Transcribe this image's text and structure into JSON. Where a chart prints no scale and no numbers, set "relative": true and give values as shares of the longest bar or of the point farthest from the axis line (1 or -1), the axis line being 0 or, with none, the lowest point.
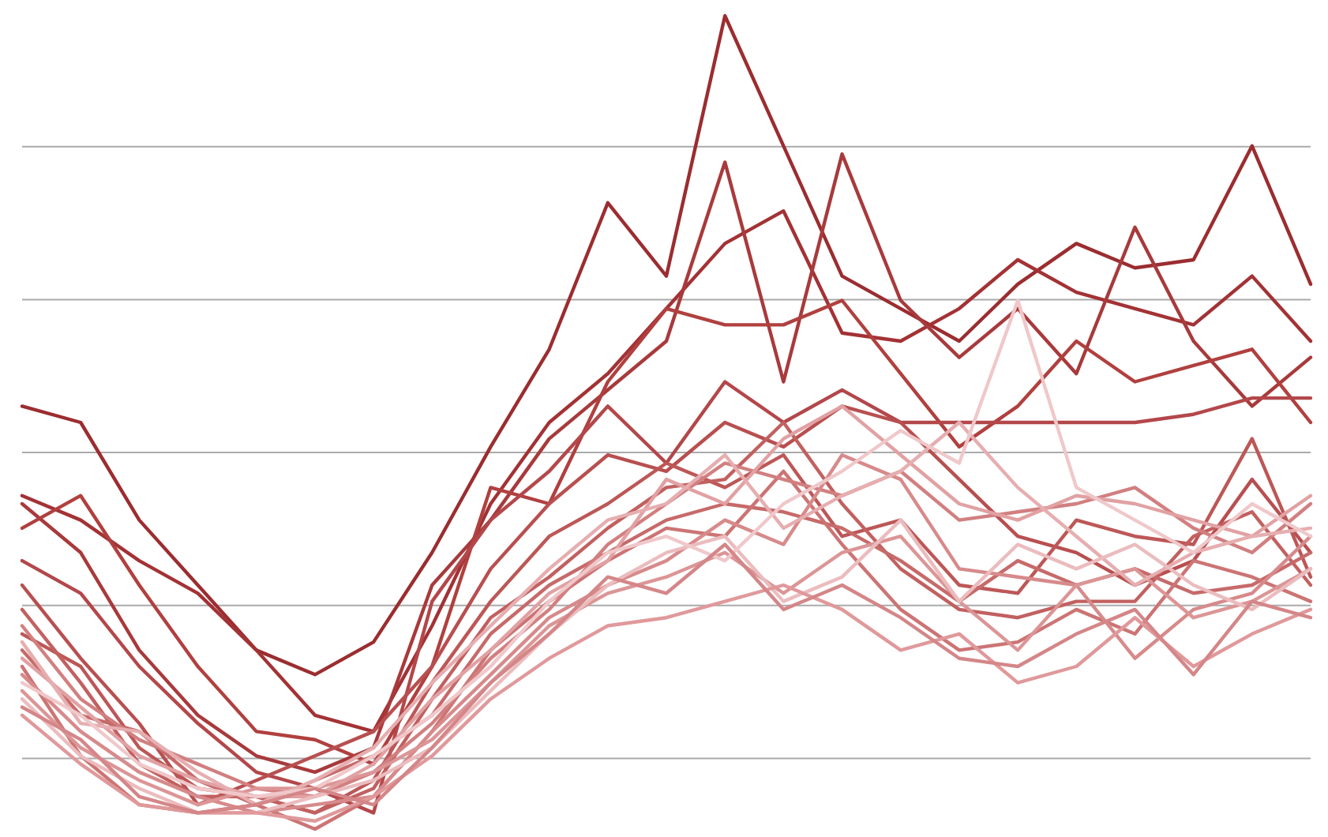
{
  "chart_data": {
    "type": "line",
    "relative": true,
    "grid": true,
    "line_style": "solid",
    "categories": [
      null,
      null,
      null,
      null,
      null,
      null,
      null,
      null,
      null,
      null,
      null,
      null,
      null,
      null,
      null,
      null,
      null,
      null,
      null,
      null,
      null,
      null,
      null
    ],
    "series": [
      {
        "color": "#9b2d30",
        "values": [
          0.52,
          0.5,
          0.38,
          0.3,
          0.22,
          0.19,
          0.23,
          0.34,
          0.47,
          0.59,
          0.77,
          0.68,
          1.0,
          0.84,
          0.68,
          0.64,
          0.6,
          0.67,
          0.72,
          0.69,
          0.7,
          0.84,
          0.67
        ]
      },
      {
        "color": "#a33235",
        "values": [
          0.41,
          0.38,
          0.33,
          0.29,
          0.22,
          0.14,
          0.12,
          0.25,
          0.4,
          0.5,
          0.56,
          0.64,
          0.72,
          0.76,
          0.61,
          0.6,
          0.64,
          0.7,
          0.66,
          0.64,
          0.62,
          0.68,
          0.6
        ]
      },
      {
        "color": "#a83a3c",
        "values": [
          0.4,
          0.34,
          0.22,
          0.14,
          0.09,
          0.07,
          0.1,
          0.3,
          0.38,
          0.48,
          0.54,
          0.6,
          0.82,
          0.55,
          0.83,
          0.65,
          0.58,
          0.64,
          0.56,
          0.74,
          0.6,
          0.52,
          0.58
        ]
      },
      {
        "color": "#b0403f",
        "values": [
          0.37,
          0.41,
          0.3,
          0.2,
          0.12,
          0.11,
          0.08,
          0.2,
          0.42,
          0.4,
          0.55,
          0.64,
          0.62,
          0.62,
          0.65,
          0.56,
          0.47,
          0.52,
          0.6,
          0.55,
          0.57,
          0.59,
          0.5
        ]
      },
      {
        "color": "#b3474a",
        "values": [
          0.33,
          0.29,
          0.2,
          0.13,
          0.07,
          0.05,
          0.02,
          0.28,
          0.38,
          0.44,
          0.52,
          0.45,
          0.55,
          0.5,
          0.54,
          0.5,
          0.5,
          0.5,
          0.5,
          0.5,
          0.51,
          0.53,
          0.53
        ]
      },
      {
        "color": "#b84f50",
        "values": [
          0.3,
          0.21,
          0.13,
          0.03,
          0.06,
          0.09,
          0.12,
          0.2,
          0.32,
          0.4,
          0.46,
          0.44,
          0.5,
          0.47,
          0.52,
          0.5,
          0.43,
          0.36,
          0.34,
          0.3,
          0.33,
          0.43,
          0.34
        ]
      },
      {
        "color": "#bd5757",
        "values": [
          0.24,
          0.2,
          0.1,
          0.05,
          0.04,
          0.02,
          0.06,
          0.18,
          0.28,
          0.36,
          0.4,
          0.45,
          0.42,
          0.46,
          0.36,
          0.38,
          0.3,
          0.29,
          0.38,
          0.36,
          0.35,
          0.48,
          0.31
        ]
      },
      {
        "color": "#c26060",
        "values": [
          0.27,
          0.18,
          0.08,
          0.04,
          0.04,
          0.02,
          0.05,
          0.16,
          0.26,
          0.31,
          0.37,
          0.42,
          0.43,
          0.5,
          0.4,
          0.32,
          0.27,
          0.26,
          0.28,
          0.28,
          0.36,
          0.39,
          0.3
        ]
      },
      {
        "color": "#c76a6a",
        "values": [
          0.22,
          0.14,
          0.12,
          0.06,
          0.03,
          0.06,
          0.09,
          0.14,
          0.24,
          0.3,
          0.34,
          0.38,
          0.4,
          0.39,
          0.37,
          0.33,
          0.28,
          0.33,
          0.3,
          0.32,
          0.29,
          0.3,
          0.34
        ]
      },
      {
        "color": "#cc7474",
        "values": [
          0.2,
          0.09,
          0.03,
          0.02,
          0.03,
          0.0,
          0.04,
          0.12,
          0.22,
          0.28,
          0.33,
          0.37,
          0.36,
          0.44,
          0.35,
          0.27,
          0.22,
          0.23,
          0.27,
          0.24,
          0.33,
          0.31,
          0.28
        ]
      },
      {
        "color": "#d27f80",
        "values": [
          0.25,
          0.16,
          0.11,
          0.08,
          0.05,
          0.04,
          0.07,
          0.13,
          0.21,
          0.27,
          0.35,
          0.4,
          0.45,
          0.43,
          0.41,
          0.44,
          0.38,
          0.39,
          0.4,
          0.42,
          0.37,
          0.34,
          0.4
        ]
      },
      {
        "color": "#d78a8b",
        "values": [
          0.19,
          0.12,
          0.07,
          0.04,
          0.02,
          0.03,
          0.04,
          0.12,
          0.19,
          0.26,
          0.3,
          0.33,
          0.38,
          0.35,
          0.46,
          0.43,
          0.32,
          0.31,
          0.3,
          0.21,
          0.27,
          0.29,
          0.36
        ]
      },
      {
        "color": "#dc9596",
        "values": [
          0.17,
          0.1,
          0.06,
          0.03,
          0.05,
          0.05,
          0.07,
          0.11,
          0.18,
          0.25,
          0.29,
          0.31,
          0.34,
          0.29,
          0.34,
          0.36,
          0.28,
          0.22,
          0.3,
          0.32,
          0.26,
          0.28,
          0.32
        ]
      },
      {
        "color": "#e1a1a3",
        "values": [
          0.21,
          0.15,
          0.09,
          0.06,
          0.04,
          0.04,
          0.08,
          0.16,
          0.22,
          0.29,
          0.33,
          0.43,
          0.4,
          0.48,
          0.52,
          0.46,
          0.4,
          0.38,
          0.41,
          0.4,
          0.38,
          0.36,
          0.41
        ]
      },
      {
        "color": "#e6aeb0",
        "values": [
          0.23,
          0.13,
          0.12,
          0.07,
          0.03,
          0.06,
          0.1,
          0.18,
          0.25,
          0.32,
          0.38,
          0.4,
          0.46,
          0.37,
          0.41,
          0.44,
          0.5,
          0.42,
          0.36,
          0.3,
          0.34,
          0.36,
          0.37
        ]
      },
      {
        "color": "#ebbcbe",
        "values": [
          0.16,
          0.09,
          0.05,
          0.02,
          0.02,
          0.04,
          0.06,
          0.1,
          0.17,
          0.24,
          0.3,
          0.34,
          0.36,
          0.28,
          0.31,
          0.38,
          0.28,
          0.35,
          0.32,
          0.35,
          0.3,
          0.27,
          0.32
        ]
      },
      {
        "color": "#f0c8ca",
        "values": [
          0.18,
          0.14,
          0.08,
          0.05,
          0.04,
          0.05,
          0.09,
          0.14,
          0.2,
          0.28,
          0.34,
          0.36,
          0.33,
          0.4,
          0.44,
          0.49,
          0.45,
          0.65,
          0.42,
          0.38,
          0.34,
          0.4,
          0.36
        ]
      },
      {
        "color": "#e0999b",
        "values": [
          0.14,
          0.08,
          0.03,
          0.02,
          0.02,
          0.01,
          0.04,
          0.09,
          0.16,
          0.21,
          0.25,
          0.26,
          0.28,
          0.3,
          0.27,
          0.22,
          0.24,
          0.18,
          0.2,
          0.26,
          0.2,
          0.24,
          0.27
        ]
      },
      {
        "color": "#d48688",
        "values": [
          0.15,
          0.11,
          0.04,
          0.02,
          0.03,
          0.05,
          0.03,
          0.1,
          0.18,
          0.24,
          0.31,
          0.29,
          0.35,
          0.27,
          0.3,
          0.26,
          0.21,
          0.2,
          0.24,
          0.27,
          0.19,
          0.28,
          0.26
        ]
      }
    ]
  }
}
